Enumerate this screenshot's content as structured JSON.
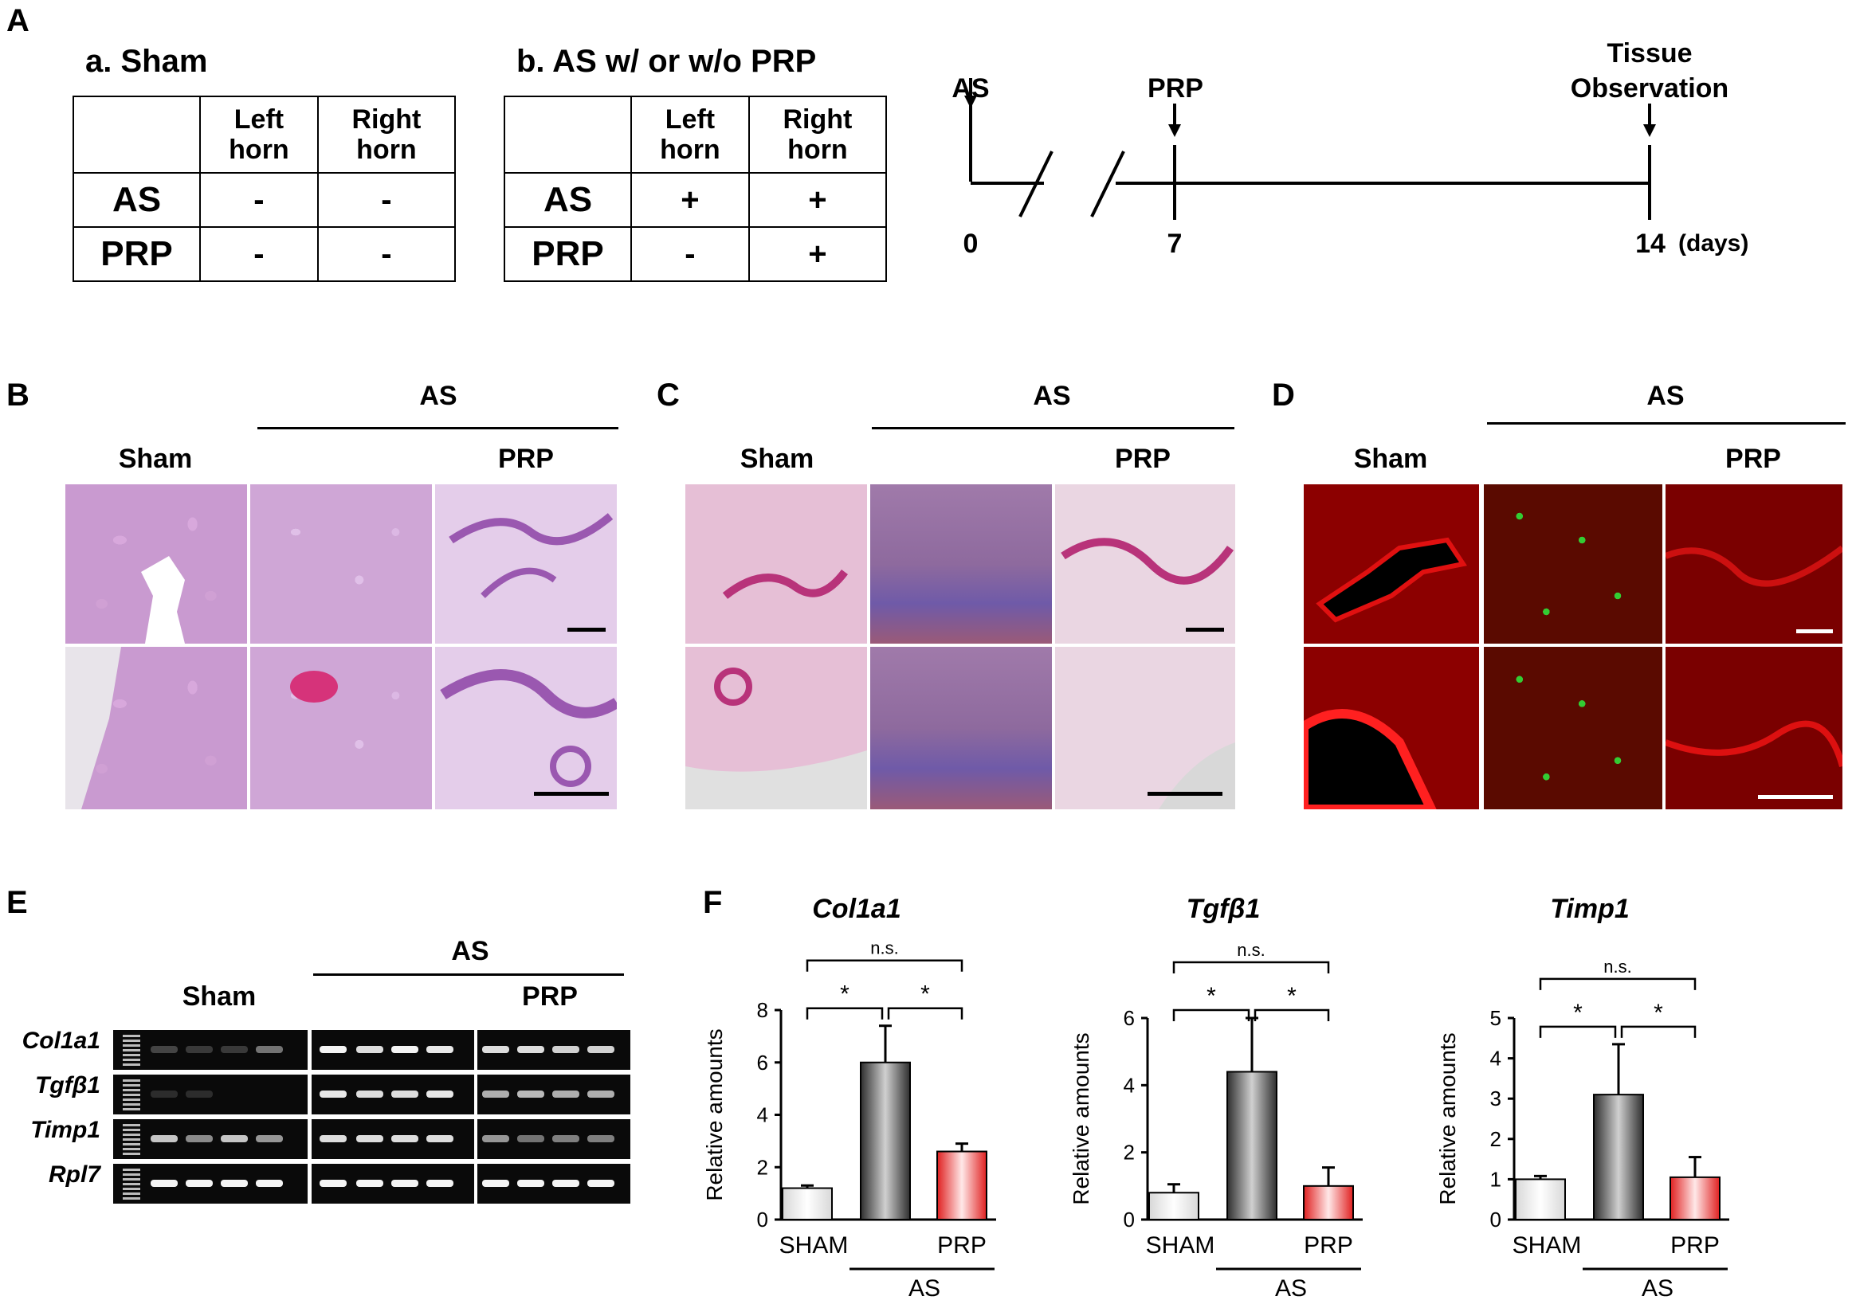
{
  "panels": {
    "A": "A",
    "B": "B",
    "C": "C",
    "D": "D",
    "E": "E",
    "F": "F"
  },
  "panelA": {
    "sham_title": "a. Sham",
    "as_title": "b. AS w/ or w/o PRP",
    "col_left": "Left horn",
    "col_right": "Right horn",
    "row_as": "AS",
    "row_prp": "PRP",
    "sham_values": {
      "as_left": "-",
      "as_right": "-",
      "prp_left": "-",
      "prp_right": "-"
    },
    "as_values": {
      "as_left": "+",
      "as_right": "+",
      "prp_left": "-",
      "prp_right": "+"
    },
    "timeline": {
      "ev_as": "AS",
      "ev_prp": "PRP",
      "ev_tissue_1": "Tissue",
      "ev_tissue_2": "Observation",
      "t0": "0",
      "t7": "7",
      "t14": "14",
      "unit": "(days)"
    }
  },
  "panelB": {
    "as": "AS",
    "sham": "Sham",
    "prp": "PRP"
  },
  "panelC": {
    "as": "AS",
    "sham": "Sham",
    "prp": "PRP"
  },
  "panelD": {
    "as": "AS",
    "sham": "Sham",
    "prp": "PRP"
  },
  "panelE": {
    "as": "AS",
    "sham": "Sham",
    "prp": "PRP",
    "genes": [
      "Col1a1",
      "Tgfβ1",
      "Timp1",
      "Rpl7"
    ]
  },
  "colors": {
    "sham_bar": "#ffffff",
    "as_bar": "#8a8a8a",
    "prp_bar": "#ff6b6b"
  },
  "chart_data": [
    {
      "type": "bar",
      "title": "Col1a1",
      "ylabel": "Relative amounts",
      "categories": [
        "SHAM",
        "AS",
        "PRP"
      ],
      "values": [
        1.2,
        6.0,
        2.6
      ],
      "errors": [
        0.1,
        1.4,
        0.3
      ],
      "ylim": [
        0,
        8
      ],
      "yticks": [
        0,
        2,
        4,
        6,
        8
      ],
      "xtick_labels": [
        "SHAM",
        "PRP"
      ],
      "group_label": "AS",
      "significance": [
        {
          "pair": "SHAM-AS",
          "label": "*"
        },
        {
          "pair": "AS-PRP",
          "label": "*"
        },
        {
          "pair": "SHAM-PRP",
          "label": "n.s."
        }
      ]
    },
    {
      "type": "bar",
      "title": "Tgfβ1",
      "ylabel": "Relative amounts",
      "categories": [
        "SHAM",
        "AS",
        "PRP"
      ],
      "values": [
        0.8,
        4.4,
        1.0
      ],
      "errors": [
        0.25,
        1.6,
        0.55
      ],
      "ylim": [
        0,
        6
      ],
      "yticks": [
        0,
        2,
        4,
        6
      ],
      "xtick_labels": [
        "SHAM",
        "PRP"
      ],
      "group_label": "AS",
      "significance": [
        {
          "pair": "SHAM-AS",
          "label": "*"
        },
        {
          "pair": "AS-PRP",
          "label": "*"
        },
        {
          "pair": "SHAM-PRP",
          "label": "n.s."
        }
      ]
    },
    {
      "type": "bar",
      "title": "Timp1",
      "ylabel": "Relative amounts",
      "categories": [
        "SHAM",
        "AS",
        "PRP"
      ],
      "values": [
        1.0,
        3.1,
        1.05
      ],
      "errors": [
        0.08,
        1.25,
        0.5
      ],
      "ylim": [
        0,
        5
      ],
      "yticks": [
        0,
        1,
        2,
        3,
        4,
        5
      ],
      "xtick_labels": [
        "SHAM",
        "PRP"
      ],
      "group_label": "AS",
      "significance": [
        {
          "pair": "SHAM-AS",
          "label": "*"
        },
        {
          "pair": "AS-PRP",
          "label": "*"
        },
        {
          "pair": "SHAM-PRP",
          "label": "n.s."
        }
      ]
    }
  ]
}
